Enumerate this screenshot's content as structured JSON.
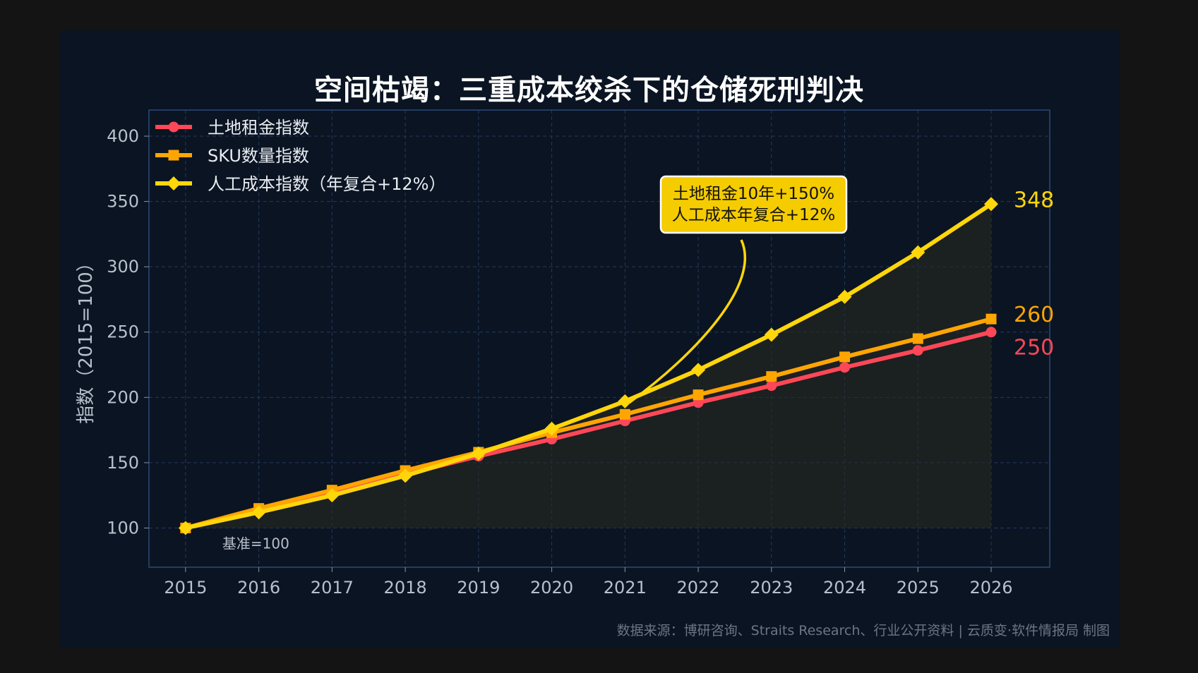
{
  "chart_data": {
    "type": "line",
    "title": "空间枯竭：三重成本绞杀下的仓储死刑判决",
    "xlabel": "",
    "ylabel": "指数（2015=100）",
    "x": [
      2015,
      2016,
      2017,
      2018,
      2019,
      2020,
      2021,
      2022,
      2023,
      2024,
      2025,
      2026
    ],
    "xlim": [
      2014.5,
      2026.8
    ],
    "ylim": [
      70,
      420
    ],
    "yticks": [
      100,
      150,
      200,
      250,
      300,
      350,
      400
    ],
    "grid": true,
    "legend_position": "top-left",
    "series": [
      {
        "name": "土地租金指数",
        "color": "#ff4757",
        "marker": "circle",
        "values": [
          100,
          114,
          127,
          141,
          155,
          168,
          182,
          196,
          209,
          223,
          236,
          250
        ],
        "end_label": "250"
      },
      {
        "name": "SKU数量指数",
        "color": "#ffa502",
        "marker": "square",
        "values": [
          100,
          115,
          129,
          144,
          158,
          173,
          187,
          202,
          216,
          231,
          245,
          260
        ],
        "end_label": "260"
      },
      {
        "name": "人工成本指数（年复合+12%）",
        "color": "#ffd60a",
        "marker": "diamond",
        "values": [
          100,
          112,
          125,
          140,
          157,
          176,
          197,
          221,
          248,
          277,
          311,
          348
        ],
        "end_label": "348"
      }
    ],
    "annotations": {
      "callout": [
        "土地租金10年+150%",
        "人工成本年复合+12%"
      ],
      "baseline": "基准=100"
    },
    "source": "数据来源：博研咨询、Straits Research、行业公开资料 | 云质变·软件情报局 制图"
  }
}
